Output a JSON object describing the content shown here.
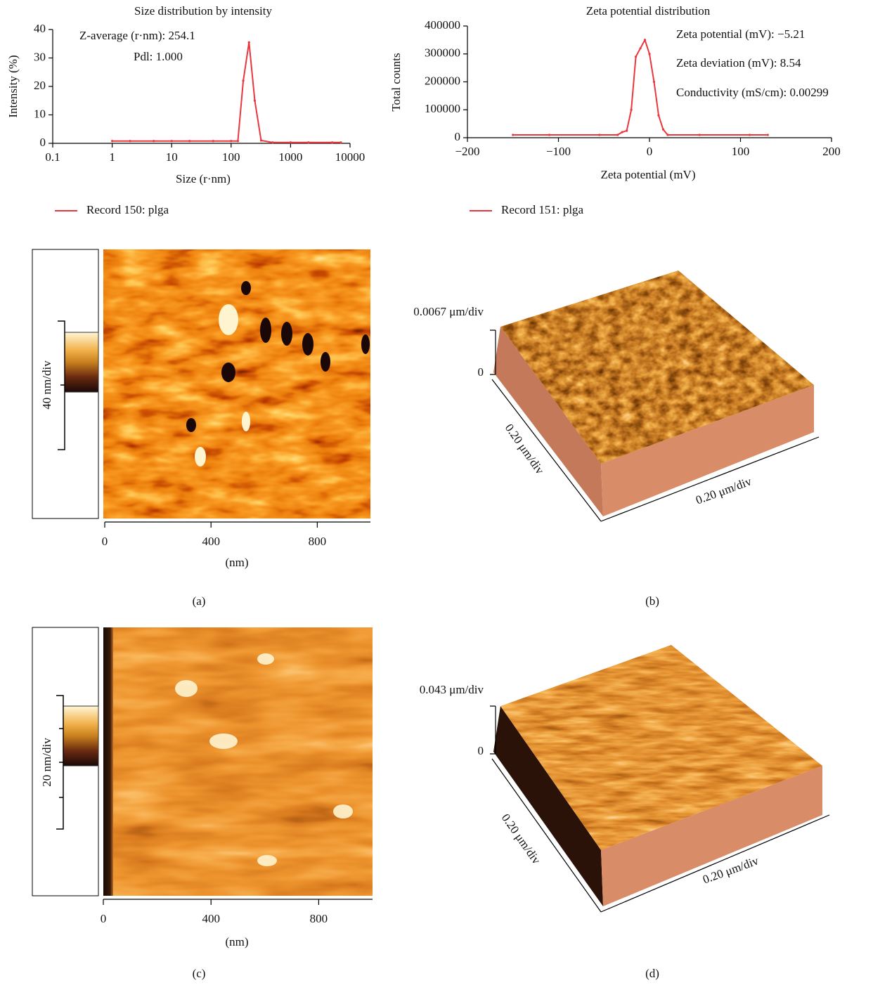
{
  "chart_data": [
    {
      "type": "line",
      "title": "Size distribution by intensity",
      "xscale": "log",
      "xlabel": "Size (r·nm)",
      "ylabel": "Intensity (%)",
      "annotations": [
        "Z-average (r·nm): 254.1",
        "Pdl: 1.000"
      ],
      "x": [
        1,
        2,
        5,
        10,
        20,
        50,
        100,
        130,
        160,
        200,
        250,
        320,
        500,
        1000,
        2000,
        5000,
        7000
      ],
      "series": [
        {
          "name": "Record 150: plga",
          "color": "#e8383d",
          "values": [
            0.8,
            0.8,
            0.8,
            0.8,
            0.8,
            0.8,
            0.8,
            0.8,
            22,
            35.5,
            15,
            1,
            0.3,
            0.3,
            0.3,
            0.3,
            0.3
          ]
        }
      ],
      "xlim": [
        0.1,
        10000
      ],
      "xticks": [
        0.1,
        1,
        10,
        100,
        1000,
        10000
      ],
      "ylim": [
        0,
        40
      ],
      "yticks": [
        0,
        10,
        20,
        30,
        40
      ]
    },
    {
      "type": "line",
      "title": "Zeta potential distribution",
      "xlabel": "Zeta potential (mV)",
      "ylabel": "Total counts",
      "annotations": [
        "Zeta potential (mV): −5.21",
        "Zeta deviation (mV): 8.54",
        "Conductivity (mS/cm): 0.00299"
      ],
      "x": [
        -150,
        -110,
        -55,
        -35,
        -30,
        -25,
        -20,
        -15,
        -10,
        -5,
        0,
        5,
        10,
        15,
        20,
        55,
        110,
        130
      ],
      "series": [
        {
          "name": "Record 151: plga",
          "color": "#e8383d",
          "values": [
            10000,
            10000,
            10000,
            10000,
            20000,
            25000,
            100000,
            290000,
            320000,
            350000,
            300000,
            200000,
            80000,
            30000,
            10000,
            10000,
            10000,
            10000
          ]
        }
      ],
      "xlim": [
        -200,
        200
      ],
      "xticks": [
        {
          "value": -200,
          "label": "−200"
        },
        {
          "value": -100,
          "label": "−100"
        },
        0,
        100,
        200
      ],
      "ylim": [
        0,
        400000
      ],
      "yticks": [
        0,
        100000,
        200000,
        300000,
        400000
      ]
    }
  ],
  "panels": [
    {
      "label": "(a)",
      "scale_label": "40 nm/div",
      "xlabel": "(nm)",
      "xlim": [
        0,
        1000
      ],
      "xticks": [
        0,
        400,
        800
      ]
    },
    {
      "label": "(b)",
      "z_top_label": "0.0067 μm/div",
      "z_zero_label": "0",
      "y_label": "0.20 μm/div",
      "x_label": "0.20 μm/div"
    },
    {
      "label": "(c)",
      "scale_label": "20 nm/div",
      "xlabel": "(nm)",
      "xlim": [
        0,
        1000
      ],
      "xticks": [
        0,
        400,
        800
      ]
    },
    {
      "label": "(d)",
      "z_top_label": "0.043 μm/div",
      "z_zero_label": "0",
      "y_label": "0.20 μm/div",
      "x_label": "0.20 μm/div"
    }
  ]
}
